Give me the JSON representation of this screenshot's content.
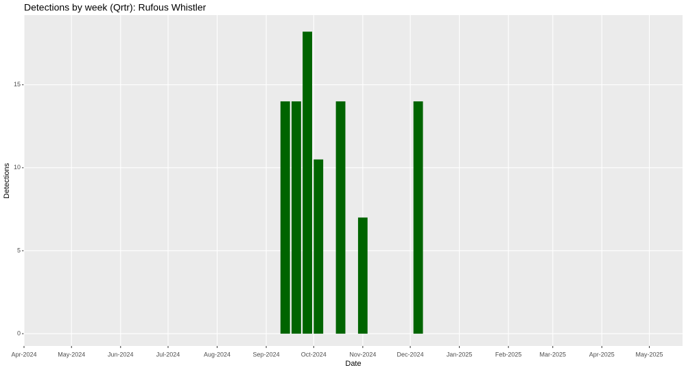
{
  "chart_data": {
    "type": "bar",
    "title": "Detections by week (Qrtr): Rufous Whistler",
    "x_label": "Date",
    "y_label": "Detections",
    "x": [
      "2024-09-13",
      "2024-09-20",
      "2024-09-27",
      "2024-10-04",
      "2024-10-18",
      "2024-11-01",
      "2024-12-06"
    ],
    "values": [
      14,
      14,
      18.2,
      10.5,
      14,
      7,
      14
    ],
    "color": "#006400",
    "xlim": [
      "2024-04-01",
      "2025-05-22"
    ],
    "xticks": [
      {
        "value": "2024-04-01",
        "label": "Apr-2024"
      },
      {
        "value": "2024-05-01",
        "label": "May-2024"
      },
      {
        "value": "2024-06-01",
        "label": "Jun-2024"
      },
      {
        "value": "2024-07-01",
        "label": "Jul-2024"
      },
      {
        "value": "2024-08-01",
        "label": "Aug-2024"
      },
      {
        "value": "2024-09-01",
        "label": "Sep-2024"
      },
      {
        "value": "2024-10-01",
        "label": "Oct-2024"
      },
      {
        "value": "2024-11-01",
        "label": "Nov-2024"
      },
      {
        "value": "2024-12-01",
        "label": "Dec-2024"
      },
      {
        "value": "2025-01-01",
        "label": "Jan-2025"
      },
      {
        "value": "2025-02-01",
        "label": "Feb-2025"
      },
      {
        "value": "2025-03-01",
        "label": "Mar-2025"
      },
      {
        "value": "2025-04-01",
        "label": "Apr-2025"
      },
      {
        "value": "2025-05-01",
        "label": "May-2025"
      }
    ],
    "ylim": [
      -0.74,
      19.2
    ],
    "yticks": [
      0,
      5,
      10,
      15
    ],
    "grid": true
  }
}
